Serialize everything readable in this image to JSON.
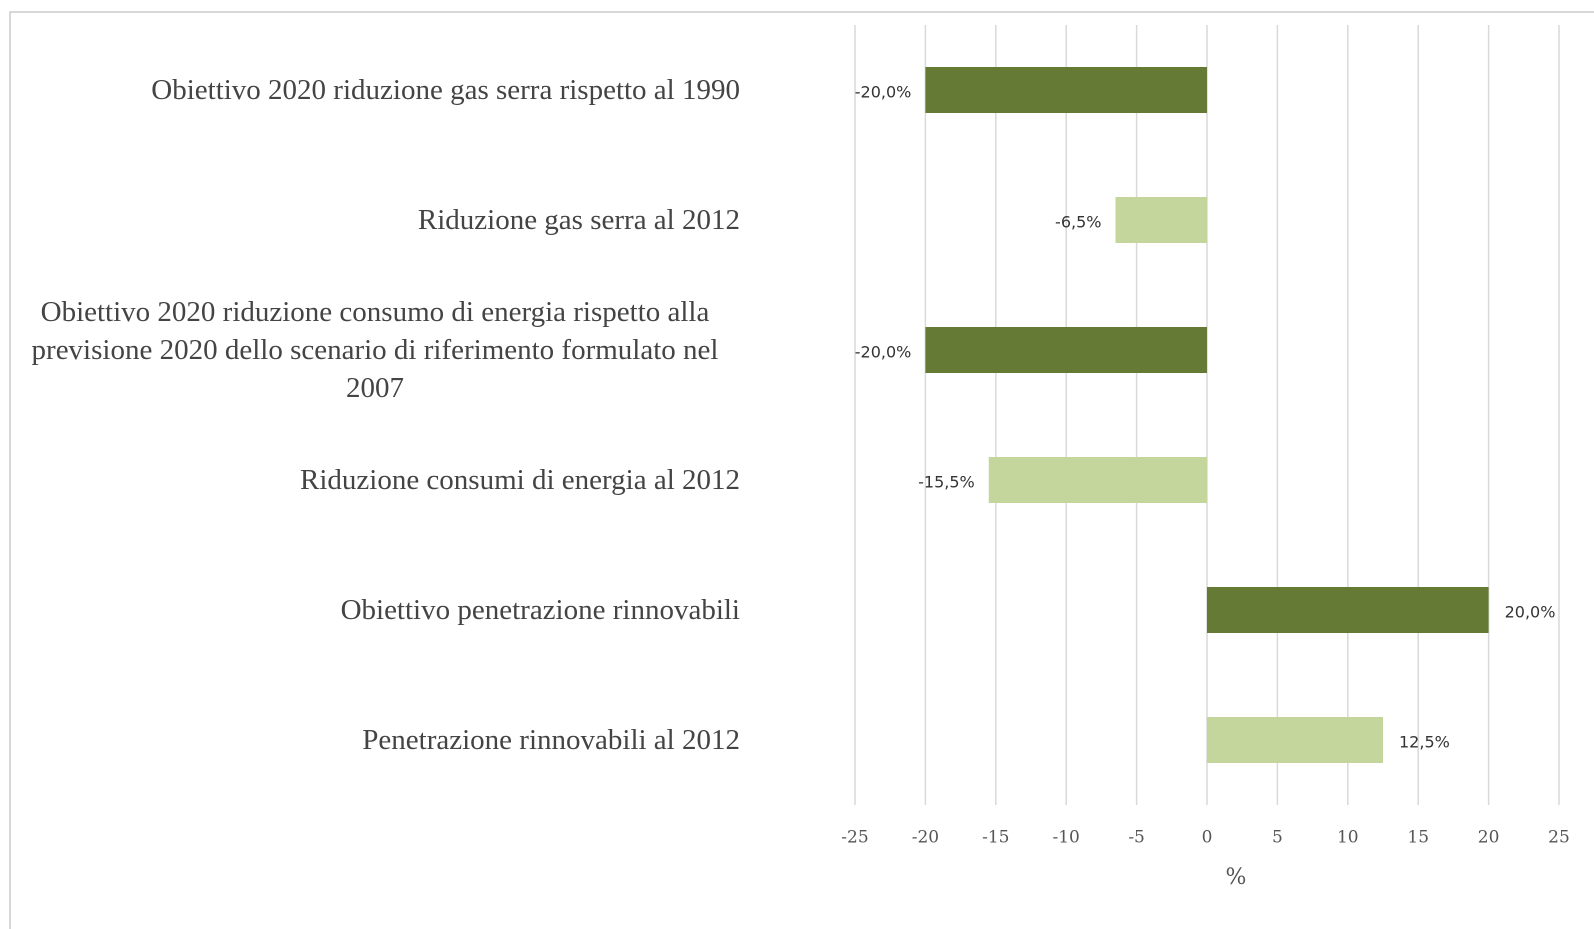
{
  "chart_data": {
    "type": "bar",
    "orientation": "horizontal",
    "categories": [
      "Obiettivo 2020 riduzione gas serra rispetto al 1990",
      "Riduzione gas serra al 2012",
      "Obiettivo 2020 riduzione consumo di energia rispetto alla previsione  2020 dello scenario di riferimento formulato nel 2007",
      "Riduzione consumi di energia al 2012",
      "Obiettivo penetrazione rinnovabili",
      "Penetrazione rinnovabili al 2012"
    ],
    "values": [
      -20,
      -6.5,
      -20,
      -15.5,
      20,
      12.5
    ],
    "value_labels": [
      "-20,0%",
      "-6,5%",
      "-20,0%",
      "-15,5%",
      "20,0%",
      "12,5%"
    ],
    "colors": [
      "#647a35",
      "#c4d69c",
      "#647a35",
      "#c4d69c",
      "#647a35",
      "#c4d69c"
    ],
    "xlim": [
      -25,
      25
    ],
    "xticks": [
      -25,
      -20,
      -15,
      -10,
      -5,
      0,
      5,
      10,
      15,
      20,
      25
    ],
    "x_label": "%",
    "grid": true
  }
}
